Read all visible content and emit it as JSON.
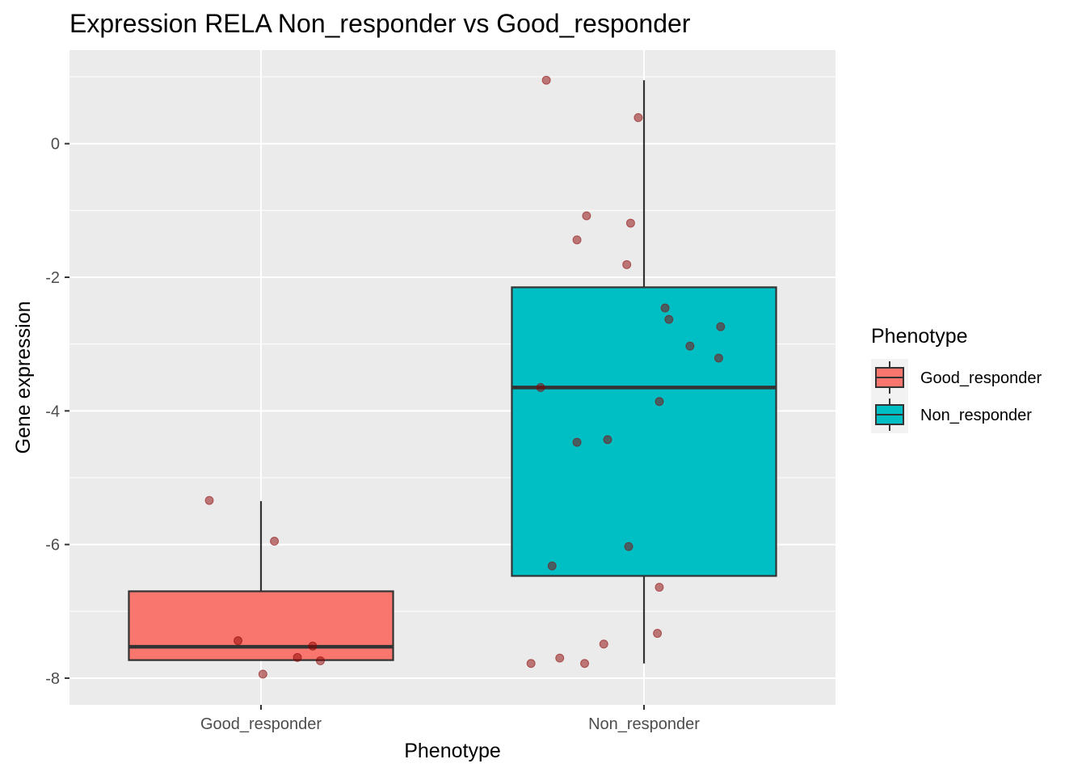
{
  "chart_data": {
    "type": "box",
    "title": "Expression RELA Non_responder vs Good_responder",
    "xlabel": "Phenotype",
    "ylabel": "Gene expression",
    "ylim": [
      -8.4,
      1.4
    ],
    "yticks": [
      0,
      -2,
      -4,
      -6,
      -8
    ],
    "ytick_labels": [
      "0",
      "-2",
      "-4",
      "-6",
      "-8"
    ],
    "categories": [
      "Good_responder",
      "Non_responder"
    ],
    "grid": true,
    "legend": {
      "title": "Phenotype",
      "position": "right",
      "entries": [
        {
          "label": "Good_responder",
          "color": "#F8766D"
        },
        {
          "label": "Non_responder",
          "color": "#00BFC4"
        }
      ]
    },
    "boxes": [
      {
        "name": "Good_responder",
        "color": "#F8766D",
        "min": -7.95,
        "q1": -7.73,
        "median": -7.53,
        "q3": -6.7,
        "whisker_low": -7.73,
        "whisker_high": -5.35
      },
      {
        "name": "Non_responder",
        "color": "#00BFC4",
        "min": -7.78,
        "q1": -6.47,
        "median": -3.65,
        "q3": -2.15,
        "whisker_low": -7.78,
        "whisker_high": 0.95
      }
    ],
    "points": [
      {
        "category": "Good_responder",
        "jitter": -0.27,
        "y": -5.34
      },
      {
        "category": "Good_responder",
        "jitter": 0.07,
        "y": -5.95
      },
      {
        "category": "Good_responder",
        "jitter": -0.12,
        "y": -7.44
      },
      {
        "category": "Good_responder",
        "jitter": 0.27,
        "y": -7.52
      },
      {
        "category": "Good_responder",
        "jitter": 0.19,
        "y": -7.69
      },
      {
        "category": "Good_responder",
        "jitter": 0.31,
        "y": -7.74
      },
      {
        "category": "Good_responder",
        "jitter": 0.01,
        "y": -7.94
      },
      {
        "category": "Non_responder",
        "jitter": -0.51,
        "y": 0.95
      },
      {
        "category": "Non_responder",
        "jitter": -0.03,
        "y": 0.39
      },
      {
        "category": "Non_responder",
        "jitter": -0.3,
        "y": -1.08
      },
      {
        "category": "Non_responder",
        "jitter": -0.07,
        "y": -1.19
      },
      {
        "category": "Non_responder",
        "jitter": -0.35,
        "y": -1.44
      },
      {
        "category": "Non_responder",
        "jitter": -0.09,
        "y": -1.81
      },
      {
        "category": "Non_responder",
        "jitter": 0.11,
        "y": -2.46
      },
      {
        "category": "Non_responder",
        "jitter": 0.13,
        "y": -2.63
      },
      {
        "category": "Non_responder",
        "jitter": 0.4,
        "y": -2.74
      },
      {
        "category": "Non_responder",
        "jitter": 0.24,
        "y": -3.03
      },
      {
        "category": "Non_responder",
        "jitter": 0.39,
        "y": -3.21
      },
      {
        "category": "Non_responder",
        "jitter": -0.54,
        "y": -3.65
      },
      {
        "category": "Non_responder",
        "jitter": 0.08,
        "y": -3.86
      },
      {
        "category": "Non_responder",
        "jitter": -0.35,
        "y": -4.47
      },
      {
        "category": "Non_responder",
        "jitter": -0.19,
        "y": -4.43
      },
      {
        "category": "Non_responder",
        "jitter": -0.08,
        "y": -6.03
      },
      {
        "category": "Non_responder",
        "jitter": -0.48,
        "y": -6.32
      },
      {
        "category": "Non_responder",
        "jitter": 0.08,
        "y": -6.64
      },
      {
        "category": "Non_responder",
        "jitter": 0.07,
        "y": -7.33
      },
      {
        "category": "Non_responder",
        "jitter": -0.21,
        "y": -7.49
      },
      {
        "category": "Non_responder",
        "jitter": -0.44,
        "y": -7.7
      },
      {
        "category": "Non_responder",
        "jitter": -0.31,
        "y": -7.78
      },
      {
        "category": "Non_responder",
        "jitter": -0.59,
        "y": -7.78
      }
    ],
    "point_color": "#8B0000"
  }
}
